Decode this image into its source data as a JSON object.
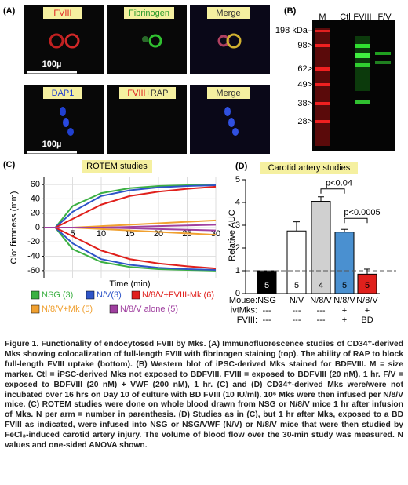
{
  "panel_a": {
    "label": "(A)",
    "top": [
      "FVIII",
      "Fibrinogen",
      "Merge"
    ],
    "bottom": [
      "DAP1",
      "FVIII",
      "+RAP",
      "Merge"
    ],
    "scale": "100µ"
  },
  "panel_b": {
    "label": "(B)",
    "lanes": [
      "M",
      "Ctl",
      "FVIII",
      "F/V"
    ],
    "markers": [
      "198 kDa–",
      "98>",
      "62>",
      "49>",
      "38>",
      "28>"
    ]
  },
  "chart_data": [
    {
      "type": "line",
      "panel": "(C)",
      "title": "ROTEM studies",
      "xlabel": "Time (min)",
      "ylabel": "Clot firmness (mm)",
      "x": [
        0,
        2,
        5,
        10,
        15,
        20,
        25,
        30
      ],
      "xlim": [
        0,
        30
      ],
      "xticks": [
        5,
        10,
        15,
        20,
        25,
        30
      ],
      "ylim": [
        -70,
        70
      ],
      "yticks": [
        -60,
        -40,
        -20,
        0,
        20,
        40,
        60
      ],
      "series": [
        {
          "name": "NSG (3)",
          "color": "#3cb043",
          "values": [
            0,
            0,
            30,
            48,
            55,
            58,
            59,
            60
          ]
        },
        {
          "name": "N/V(3)",
          "color": "#2f55c8",
          "values": [
            0,
            0,
            22,
            44,
            52,
            56,
            58,
            59
          ]
        },
        {
          "name": "N/8/V+FVIII-Mk (6)",
          "color": "#e0201c",
          "values": [
            0,
            0,
            12,
            32,
            44,
            50,
            54,
            57
          ]
        },
        {
          "name": "N/8/V+Mk (5)",
          "color": "#f0a030",
          "values": [
            0,
            0,
            0,
            2,
            4,
            6,
            8,
            10
          ]
        },
        {
          "name": "N/8/V alone (5)",
          "color": "#a040a0",
          "values": [
            0,
            0,
            0,
            0,
            1,
            2,
            3,
            4
          ]
        }
      ]
    },
    {
      "type": "bar",
      "panel": "(D)",
      "title": "Carotid artery studies",
      "ylabel": "Relative AUC",
      "categories": [
        "NSG",
        "N/V",
        "N/8/V",
        "N/8/V",
        "N/8/V"
      ],
      "values": [
        1,
        2.75,
        4.05,
        2.7,
        0.85
      ],
      "errors": [
        0,
        0.4,
        0.2,
        0.12,
        0.22
      ],
      "colors": [
        "#000000",
        "#ffffff",
        "#d0d0d0",
        "#4a90d0",
        "#e0201c"
      ],
      "n_labels": [
        "5",
        "5",
        "4",
        "5",
        "5"
      ],
      "ylim": [
        0,
        5
      ],
      "yticks": [
        0,
        1,
        2,
        3,
        4,
        5
      ],
      "reference": 1,
      "row_labels": [
        "Mouse:",
        "ivtMks:",
        "FVIII:"
      ],
      "ivtMks": [
        "---",
        "---",
        "---",
        "+",
        "+"
      ],
      "FVIII": [
        "---",
        "---",
        "---",
        "+",
        "BD"
      ],
      "annotations": [
        {
          "text": "p<0.04",
          "from": 2,
          "to": 3
        },
        {
          "text": "p<0.0005",
          "from": 3,
          "to": 4
        }
      ]
    }
  ],
  "caption": [
    "Figure 1. Functionality of endocytosed FVIII by Mks",
    ". (",
    "A",
    ") Immunofluorescence studies of CD34⁺-derived Mks showing colocalization of full-length FVIII with fibrinogen staining (top). The ability of RAP to block full-length FVIII uptake (bottom). (",
    "B",
    ") Western blot of iPSC-derived Mks stained for BDFVIII. M = size marker. Ctl = iPSC-derived Mks not exposed to BDFVIII. FVIII = exposed to BDFVIII (20 nM), 1 hr. F/V = exposed to BDFVIII (20 nM) + VWF (200 nM),  1 hr. (",
    "C",
    ") and (",
    "D",
    ") CD34⁺-derived Mks were/were not incubated over 16 hrs on Day 10 of culture with BD FVIII (10 IU/ml). 10⁶ Mks were then infused per N/8/V mice. (",
    "C",
    ") ROTEM studies were done on whole blood drawn from NSG or N/8/V mice 1 hr after infusion of Mks. N per arm = number in parenthesis. (",
    "D",
    ") Studies as in (C), but 1 hr after Mks, exposed to a BD FVIII as indicated, were infused into NSG or NSG/VWF (N/V) or N/8/V mice that were then studied by FeCl₃-induced carotid artery injury. The volume of blood flow over the 30-min study was measured. N values and one-sided ANOVA shown."
  ]
}
